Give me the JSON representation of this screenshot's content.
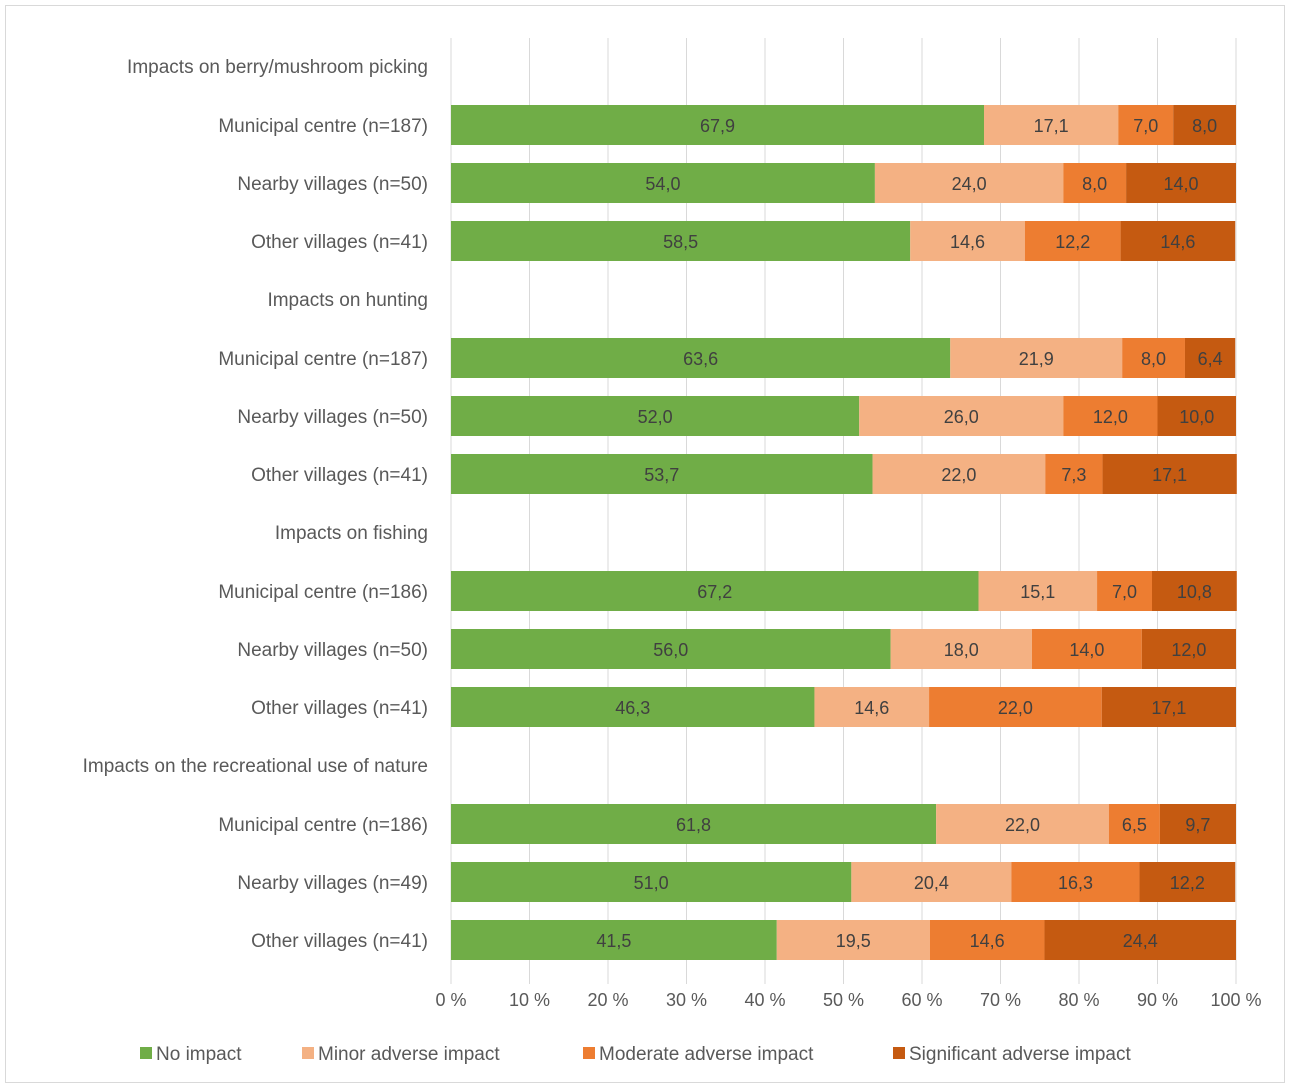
{
  "chart_data": {
    "type": "bar",
    "orientation": "horizontal",
    "stacked": "percent",
    "groups": [
      "Impacts on berry/mushroom picking",
      "Impacts on hunting",
      "Impacts on fishing",
      "Impacts on the recreational use of nature"
    ],
    "categories": [
      "Municipal centre (n=187)",
      "Nearby villages (n=50)",
      "Other villages (n=41)",
      "Municipal centre (n=187)",
      "Nearby villages (n=50)",
      "Other villages (n=41)",
      "Municipal centre (n=186)",
      "Nearby villages (n=50)",
      "Other villages (n=41)",
      "Municipal centre (n=186)",
      "Nearby villages (n=49)",
      "Other villages (n=41)"
    ],
    "series": [
      {
        "name": "No impact",
        "color": "#70ad47",
        "values": [
          67.9,
          54.0,
          58.5,
          63.6,
          52.0,
          53.7,
          67.2,
          56.0,
          46.3,
          61.8,
          51.0,
          41.5
        ],
        "labels": [
          "67,9",
          "54,0",
          "58,5",
          "63,6",
          "52,0",
          "53,7",
          "67,2",
          "56,0",
          "46,3",
          "61,8",
          "51,0",
          "41,5"
        ]
      },
      {
        "name": "Minor adverse impact",
        "color": "#f4b183",
        "values": [
          17.1,
          24.0,
          14.6,
          21.9,
          26.0,
          22.0,
          15.1,
          18.0,
          14.6,
          22.0,
          20.4,
          19.5
        ],
        "labels": [
          "17,1",
          "24,0",
          "14,6",
          "21,9",
          "26,0",
          "22,0",
          "15,1",
          "18,0",
          "14,6",
          "22,0",
          "20,4",
          "19,5"
        ]
      },
      {
        "name": "Moderate adverse impact",
        "color": "#ed7d31",
        "values": [
          7.0,
          8.0,
          12.2,
          8.0,
          12.0,
          7.3,
          7.0,
          14.0,
          22.0,
          6.5,
          16.3,
          14.6
        ],
        "labels": [
          "7,0",
          "8,0",
          "12,2",
          "8,0",
          "12,0",
          "7,3",
          "7,0",
          "14,0",
          "22,0",
          "6,5",
          "16,3",
          "14,6"
        ]
      },
      {
        "name": "Significant adverse impact",
        "color": "#c55a11",
        "values": [
          8.0,
          14.0,
          14.6,
          6.4,
          10.0,
          17.1,
          10.8,
          12.0,
          17.1,
          9.7,
          12.2,
          24.4
        ],
        "labels": [
          "8,0",
          "14,0",
          "14,6",
          "6,4",
          "10,0",
          "17,1",
          "10,8",
          "12,0",
          "17,1",
          "9,7",
          "12,2",
          "24,4"
        ]
      }
    ],
    "xlim": [
      0,
      100
    ],
    "xticks": [
      "0 %",
      "10 %",
      "20 %",
      "30 %",
      "40 %",
      "50 %",
      "60 %",
      "70 %",
      "80 %",
      "90 %",
      "100 %"
    ],
    "grid": true,
    "legend": "bottom"
  }
}
